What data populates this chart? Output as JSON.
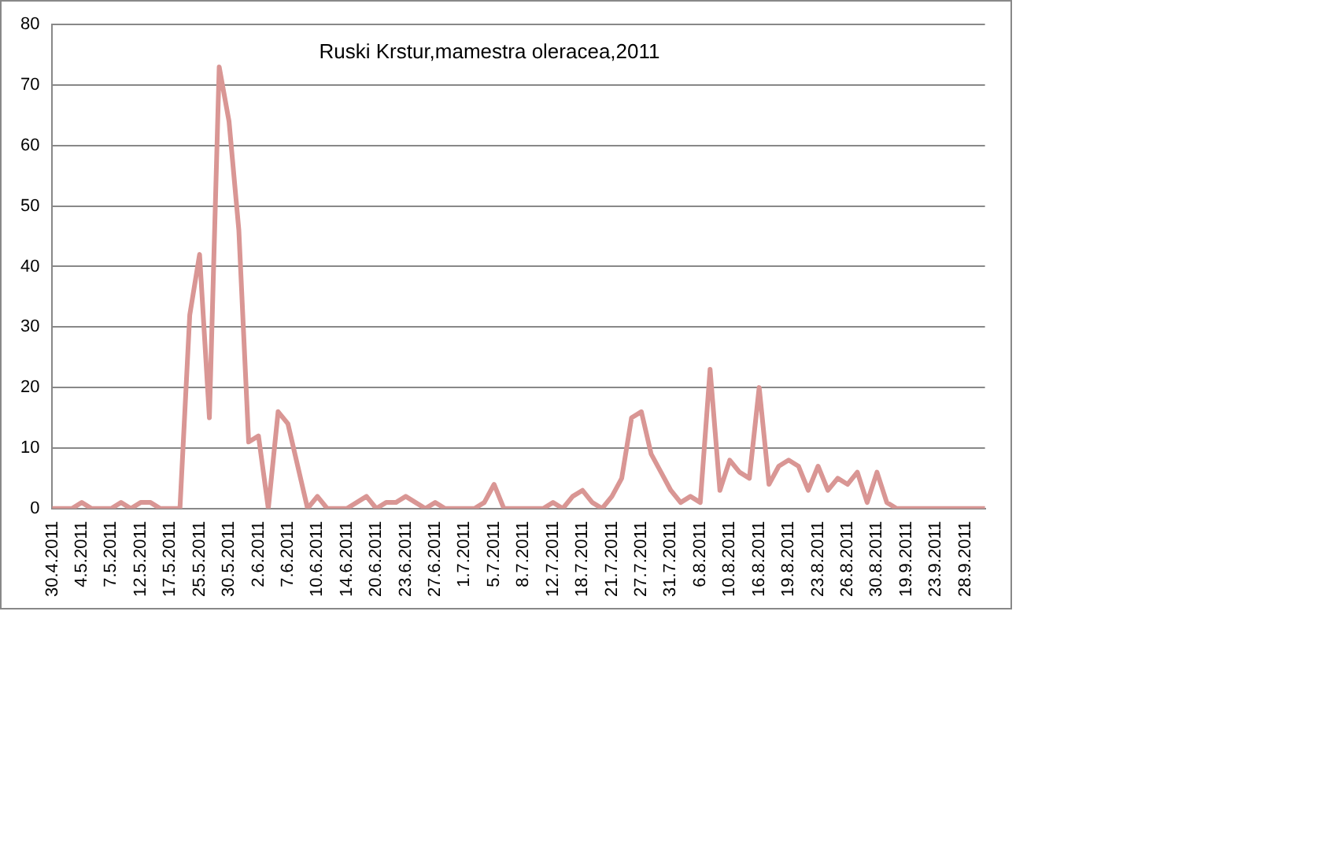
{
  "chart_data": {
    "type": "line",
    "title": "Ruski Krstur,mamestra oleracea,2011",
    "categories": [
      "30.4.2011",
      null,
      null,
      "4.5.2011",
      null,
      null,
      "7.5.2011",
      null,
      null,
      "12.5.2011",
      null,
      null,
      "17.5.2011",
      null,
      null,
      "25.5.2011",
      null,
      null,
      "30.5.2011",
      null,
      null,
      "2.6.2011",
      null,
      null,
      "7.6.2011",
      null,
      null,
      "10.6.2011",
      null,
      null,
      "14.6.2011",
      null,
      null,
      "20.6.2011",
      null,
      null,
      "23.6.2011",
      null,
      null,
      "27.6.2011",
      null,
      null,
      "1.7.2011",
      null,
      null,
      "5.7.2011",
      null,
      null,
      "8.7.2011",
      null,
      null,
      "12.7.2011",
      null,
      null,
      "18.7.2011",
      null,
      null,
      "21.7.2011",
      null,
      null,
      "27.7.2011",
      null,
      null,
      "31.7.2011",
      null,
      null,
      "6.8.2011",
      null,
      null,
      "10.8.2011",
      null,
      null,
      "16.8.2011",
      null,
      null,
      "19.8.2011",
      null,
      null,
      "23.8.2011",
      null,
      null,
      "26.8.2011",
      null,
      null,
      "30.8.2011",
      null,
      null,
      "19.9.2011",
      null,
      null,
      "23.9.2011",
      null,
      null,
      "28.9.2011",
      null,
      null
    ],
    "series": [
      {
        "color": "#d99694",
        "values": [
          0,
          0,
          0,
          1,
          0,
          0,
          0,
          1,
          0,
          1,
          1,
          0,
          0,
          0,
          32,
          42,
          15,
          73,
          64,
          46,
          11,
          12,
          0,
          16,
          14,
          7,
          0,
          2,
          0,
          0,
          0,
          1,
          2,
          0,
          1,
          1,
          2,
          1,
          0,
          1,
          0,
          0,
          0,
          0,
          1,
          4,
          0,
          0,
          0,
          0,
          0,
          1,
          0,
          2,
          3,
          1,
          0,
          2,
          5,
          15,
          16,
          9,
          6,
          3,
          1,
          2,
          1,
          23,
          3,
          8,
          6,
          5,
          20,
          4,
          7,
          8,
          7,
          3,
          7,
          3,
          5,
          4,
          6,
          1,
          6,
          1,
          0,
          0,
          0,
          0,
          0,
          0,
          0,
          0,
          0,
          0
        ]
      }
    ],
    "ylim": [
      0,
      80
    ],
    "yticks": [
      0,
      10,
      20,
      30,
      40,
      50,
      60,
      70,
      80
    ],
    "grid": "y",
    "legend": false,
    "marker": "none",
    "line_style": "solid"
  }
}
